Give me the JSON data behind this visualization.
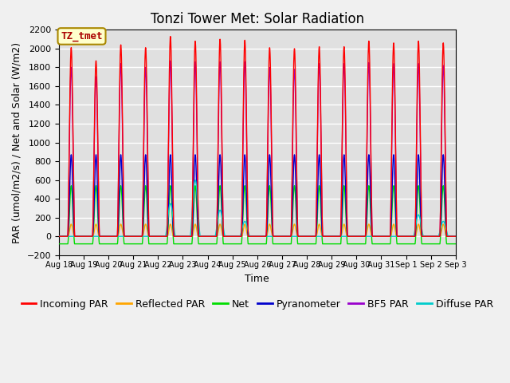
{
  "title": "Tonzi Tower Met: Solar Radiation",
  "ylabel": "PAR (umol/m2/s) / Net and Solar (W/m2)",
  "xlabel": "Time",
  "ylim": [
    -200,
    2200
  ],
  "yticks": [
    -200,
    0,
    200,
    400,
    600,
    800,
    1000,
    1200,
    1400,
    1600,
    1800,
    2000,
    2200
  ],
  "n_days": 16,
  "start_day": 18,
  "series": {
    "incoming_par": {
      "color": "#FF0000",
      "label": "Incoming PAR"
    },
    "reflected_par": {
      "color": "#FFA500",
      "label": "Reflected PAR"
    },
    "net": {
      "color": "#00DD00",
      "label": "Net"
    },
    "pyranometer": {
      "color": "#0000CC",
      "label": "Pyranometer"
    },
    "bf5_par": {
      "color": "#9900CC",
      "label": "BF5 PAR"
    },
    "diffuse_par": {
      "color": "#00CCCC",
      "label": "Diffuse PAR"
    }
  },
  "incoming_peaks": [
    2010,
    1870,
    2040,
    2010,
    2130,
    2080,
    2100,
    2090,
    2010,
    2000,
    2020,
    2020,
    2080,
    2060,
    2080,
    2060
  ],
  "bf5_peaks": [
    1800,
    1700,
    1840,
    1800,
    1870,
    1860,
    1860,
    1860,
    1800,
    1780,
    1840,
    1840,
    1850,
    1840,
    1840,
    1820
  ],
  "diffuse_days": [
    4,
    5,
    6,
    7,
    14,
    15
  ],
  "diffuse_peaks": [
    350,
    600,
    280,
    160,
    230,
    160
  ],
  "annotation_text": "TZ_tmet",
  "annotation_color": "#AA0000",
  "annotation_bg": "#FFFFCC",
  "annotation_border": "#AA8800",
  "plot_bg_color": "#E0E0E0",
  "fig_bg_color": "#F0F0F0",
  "grid_color": "#FFFFFF",
  "title_fontsize": 12,
  "label_fontsize": 9,
  "tick_fontsize": 8,
  "legend_fontsize": 9,
  "linewidth": 1.0
}
